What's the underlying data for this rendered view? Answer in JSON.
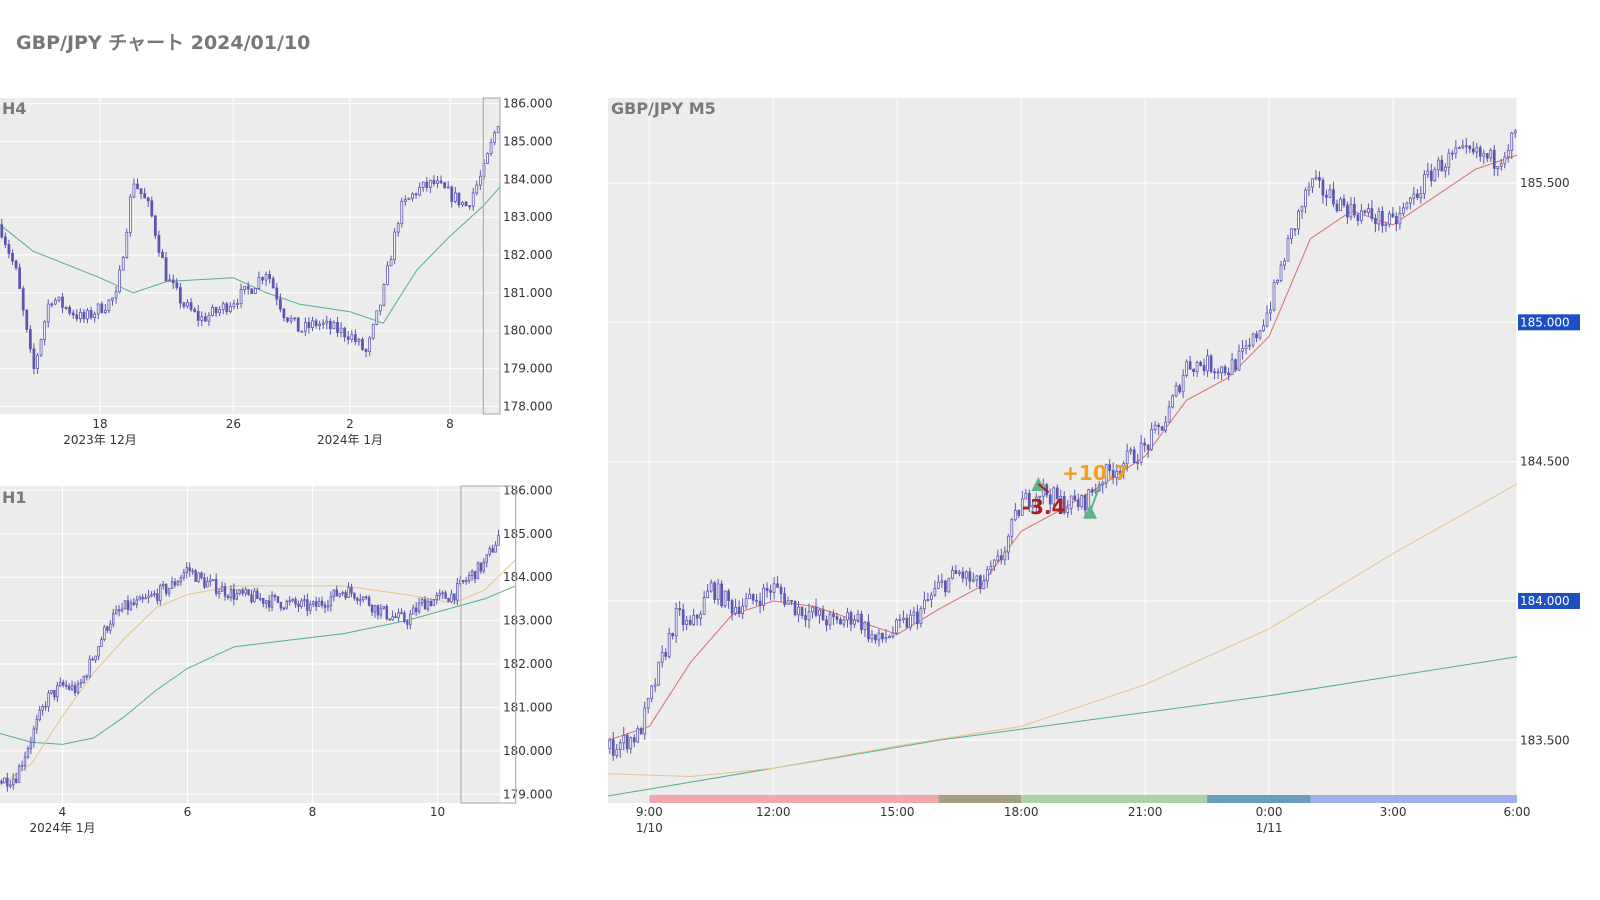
{
  "page": {
    "title": "GBP/JPY チャート 2024/01/10"
  },
  "colors": {
    "panel_bg": "#ececec",
    "grid": "#ffffff",
    "candle": "#5c56b0",
    "ma_short": "#e06a70",
    "ma_mid": "#e8c28a",
    "ma_long": "#55b08a",
    "axis_text": "#333333",
    "panel_title": "#7a7a7a",
    "price_badge_bg": "#1e4fc2",
    "price_badge_text": "#ffffff",
    "loss_annotation": "#a82020",
    "profit_annotation": "#f0a020",
    "entry_marker": "#5ab58a"
  },
  "chart_data": [
    {
      "name": "H4",
      "type": "candlestick",
      "title": "H4",
      "y_ticks": [
        "186.000",
        "185.000",
        "184.000",
        "183.000",
        "182.000",
        "181.000",
        "180.000",
        "179.000",
        "178.000"
      ],
      "y_tick_values": [
        186,
        185,
        184,
        183,
        182,
        181,
        180,
        179,
        178
      ],
      "ylim": [
        177.8,
        186.15
      ],
      "x_ticks": [
        "18",
        "26",
        "2",
        "8"
      ],
      "x_tick_dates": [
        "2023-12-18",
        "2023-12-26",
        "2024-01-02",
        "2024-01-08"
      ],
      "x_sublabels": [
        "2023年 12月",
        "2024年 1月"
      ],
      "xlim": [
        "2023-12-12",
        "2024-01-11"
      ],
      "highlight_range": [
        "2024-01-10",
        "2024-01-11"
      ],
      "price_path": [
        [
          "2023-12-12",
          182.8
        ],
        [
          "2023-12-13",
          181.5
        ],
        [
          "2023-12-14",
          178.9
        ],
        [
          "2023-12-15",
          180.9
        ],
        [
          "2023-12-16",
          180.6
        ],
        [
          "2023-12-17",
          180.3
        ],
        [
          "2023-12-18",
          180.6
        ],
        [
          "2023-12-19",
          180.9
        ],
        [
          "2023-12-20",
          184.0
        ],
        [
          "2023-12-21",
          183.2
        ],
        [
          "2023-12-22",
          181.4
        ],
        [
          "2023-12-23",
          180.7
        ],
        [
          "2023-12-24",
          180.3
        ],
        [
          "2023-12-25",
          180.5
        ],
        [
          "2023-12-26",
          180.8
        ],
        [
          "2023-12-27",
          181.1
        ],
        [
          "2023-12-28",
          181.6
        ],
        [
          "2023-12-29",
          180.5
        ],
        [
          "2023-12-30",
          180.0
        ],
        [
          "2023-12-31",
          180.2
        ],
        [
          "2024-01-02",
          179.9
        ],
        [
          "2024-01-03",
          179.4
        ],
        [
          "2024-01-04",
          181.0
        ],
        [
          "2024-01-05",
          183.2
        ],
        [
          "2024-01-06",
          183.7
        ],
        [
          "2024-01-07",
          183.9
        ],
        [
          "2024-01-08",
          183.6
        ],
        [
          "2024-01-09",
          183.3
        ],
        [
          "2024-01-10",
          184.2
        ],
        [
          "2024-01-11",
          185.7
        ]
      ],
      "ma_long": [
        [
          "2023-12-12",
          182.8
        ],
        [
          "2023-12-14",
          182.1
        ],
        [
          "2023-12-18",
          181.4
        ],
        [
          "2023-12-20",
          181.0
        ],
        [
          "2023-12-22",
          181.3
        ],
        [
          "2023-12-26",
          181.4
        ],
        [
          "2023-12-28",
          181.0
        ],
        [
          "2023-12-30",
          180.7
        ],
        [
          "2024-01-02",
          180.5
        ],
        [
          "2024-01-04",
          180.2
        ],
        [
          "2024-01-06",
          181.6
        ],
        [
          "2024-01-08",
          182.5
        ],
        [
          "2024-01-10",
          183.3
        ],
        [
          "2024-01-11",
          183.8
        ]
      ]
    },
    {
      "name": "H1",
      "type": "candlestick",
      "title": "H1",
      "y_ticks": [
        "186.000",
        "185.000",
        "184.000",
        "183.000",
        "182.000",
        "181.000",
        "180.000",
        "179.000"
      ],
      "y_tick_values": [
        186,
        185,
        184,
        183,
        182,
        181,
        180,
        179
      ],
      "ylim": [
        178.8,
        186.1
      ],
      "x_ticks": [
        "4",
        "6",
        "8",
        "10"
      ],
      "x_tick_dates": [
        "2024-01-04",
        "2024-01-06",
        "2024-01-08",
        "2024-01-10"
      ],
      "x_sublabels": [
        "2024年 1月"
      ],
      "xlim": [
        "2024-01-03",
        "2024-01-11"
      ],
      "highlight_range": [
        "2024-01-10T09:00",
        "2024-01-11T06:00"
      ],
      "price_path": [
        [
          "2024-01-03T00:00",
          179.3
        ],
        [
          "2024-01-03T06:00",
          179.4
        ],
        [
          "2024-01-03T12:00",
          180.3
        ],
        [
          "2024-01-03T18:00",
          181.2
        ],
        [
          "2024-01-04T00:00",
          181.5
        ],
        [
          "2024-01-04T06:00",
          181.4
        ],
        [
          "2024-01-04T12:00",
          182.2
        ],
        [
          "2024-01-04T18:00",
          183.0
        ],
        [
          "2024-01-05T00:00",
          183.3
        ],
        [
          "2024-01-05T06:00",
          183.4
        ],
        [
          "2024-01-05T12:00",
          183.6
        ],
        [
          "2024-01-05T18:00",
          183.8
        ],
        [
          "2024-01-06T00:00",
          184.2
        ],
        [
          "2024-01-06T06:00",
          183.9
        ],
        [
          "2024-01-06T18:00",
          183.6
        ],
        [
          "2024-01-08T00:00",
          183.3
        ],
        [
          "2024-01-08T06:00",
          183.5
        ],
        [
          "2024-01-08T12:00",
          183.7
        ],
        [
          "2024-01-08T18:00",
          183.6
        ],
        [
          "2024-01-09T00:00",
          183.3
        ],
        [
          "2024-01-09T06:00",
          183.1
        ],
        [
          "2024-01-09T12:00",
          183.0
        ],
        [
          "2024-01-09T18:00",
          183.4
        ],
        [
          "2024-01-10T00:00",
          183.5
        ],
        [
          "2024-01-10T06:00",
          183.6
        ],
        [
          "2024-01-10T12:00",
          184.0
        ],
        [
          "2024-01-10T18:00",
          184.3
        ],
        [
          "2024-01-11T00:00",
          185.0
        ],
        [
          "2024-01-11T06:00",
          185.6
        ]
      ],
      "ma_mid": [
        [
          "2024-01-03T00:00",
          179.2
        ],
        [
          "2024-01-03T12:00",
          179.7
        ],
        [
          "2024-01-04T00:00",
          180.8
        ],
        [
          "2024-01-04T12:00",
          181.8
        ],
        [
          "2024-01-05T00:00",
          182.6
        ],
        [
          "2024-01-05T12:00",
          183.3
        ],
        [
          "2024-01-06T00:00",
          183.6
        ],
        [
          "2024-01-06T18:00",
          183.8
        ],
        [
          "2024-01-08T12:00",
          183.8
        ],
        [
          "2024-01-09T12:00",
          183.6
        ],
        [
          "2024-01-10T06:00",
          183.4
        ],
        [
          "2024-01-10T18:00",
          183.7
        ],
        [
          "2024-01-11T06:00",
          184.4
        ]
      ],
      "ma_long": [
        [
          "2024-01-03T00:00",
          180.4
        ],
        [
          "2024-01-03T12:00",
          180.2
        ],
        [
          "2024-01-04T00:00",
          180.15
        ],
        [
          "2024-01-04T12:00",
          180.3
        ],
        [
          "2024-01-05T00:00",
          180.8
        ],
        [
          "2024-01-05T12:00",
          181.4
        ],
        [
          "2024-01-06T00:00",
          181.9
        ],
        [
          "2024-01-06T18:00",
          182.4
        ],
        [
          "2024-01-08T12:00",
          182.7
        ],
        [
          "2024-01-09T12:00",
          183.0
        ],
        [
          "2024-01-10T06:00",
          183.3
        ],
        [
          "2024-01-10T18:00",
          183.5
        ],
        [
          "2024-01-11T06:00",
          183.8
        ]
      ]
    },
    {
      "name": "M5",
      "type": "candlestick",
      "title": "GBP/JPY M5",
      "y_ticks": [
        "185.500",
        "185.000",
        "184.500",
        "184.000",
        "183.500"
      ],
      "y_tick_values": [
        185.5,
        185.0,
        184.5,
        184.0,
        183.5
      ],
      "ylim": [
        183.275,
        185.805
      ],
      "x_ticks": [
        "9:00",
        "12:00",
        "15:00",
        "18:00",
        "21:00",
        "0:00",
        "3:00",
        "6:00"
      ],
      "x_tick_times": [
        "2024-01-10T09:00",
        "2024-01-10T12:00",
        "2024-01-10T15:00",
        "2024-01-10T18:00",
        "2024-01-10T21:00",
        "2024-01-11T00:00",
        "2024-01-11T03:00",
        "2024-01-11T06:00"
      ],
      "x_sublabels": [
        {
          "text": "1/10",
          "at": "2024-01-10T09:00"
        },
        {
          "text": "1/11",
          "at": "2024-01-11T00:00"
        }
      ],
      "xlim": [
        "2024-01-10T08:00",
        "2024-01-11T06:00"
      ],
      "price_labels": [
        {
          "text": "185.000",
          "value": 185.0
        },
        {
          "text": "184.000",
          "value": 184.0
        }
      ],
      "price_path": [
        [
          "2024-01-10T08:00",
          183.47
        ],
        [
          "2024-01-10T08:45",
          183.52
        ],
        [
          "2024-01-10T09:20",
          183.8
        ],
        [
          "2024-01-10T09:40",
          183.95
        ],
        [
          "2024-01-10T10:00",
          183.9
        ],
        [
          "2024-01-10T10:30",
          184.05
        ],
        [
          "2024-01-10T11:00",
          183.98
        ],
        [
          "2024-01-10T11:30",
          184.0
        ],
        [
          "2024-01-10T12:00",
          184.05
        ],
        [
          "2024-01-10T12:30",
          183.98
        ],
        [
          "2024-01-10T13:00",
          183.95
        ],
        [
          "2024-01-10T13:30",
          183.92
        ],
        [
          "2024-01-10T14:00",
          183.95
        ],
        [
          "2024-01-10T14:30",
          183.85
        ],
        [
          "2024-01-10T15:00",
          183.9
        ],
        [
          "2024-01-10T15:30",
          183.95
        ],
        [
          "2024-01-10T16:00",
          184.05
        ],
        [
          "2024-01-10T16:30",
          184.1
        ],
        [
          "2024-01-10T17:00",
          184.05
        ],
        [
          "2024-01-10T17:30",
          184.15
        ],
        [
          "2024-01-10T18:00",
          184.35
        ],
        [
          "2024-01-10T18:30",
          184.4
        ],
        [
          "2024-01-10T19:00",
          184.35
        ],
        [
          "2024-01-10T19:30",
          184.35
        ],
        [
          "2024-01-10T20:00",
          184.45
        ],
        [
          "2024-01-10T20:30",
          184.5
        ],
        [
          "2024-01-10T21:00",
          184.55
        ],
        [
          "2024-01-10T21:30",
          184.65
        ],
        [
          "2024-01-10T22:00",
          184.85
        ],
        [
          "2024-01-10T22:30",
          184.85
        ],
        [
          "2024-01-10T23:00",
          184.83
        ],
        [
          "2024-01-10T23:30",
          184.9
        ],
        [
          "2024-01-11T00:00",
          185.05
        ],
        [
          "2024-01-11T00:30",
          185.3
        ],
        [
          "2024-01-11T01:00",
          185.5
        ],
        [
          "2024-01-11T01:30",
          185.45
        ],
        [
          "2024-01-11T02:00",
          185.4
        ],
        [
          "2024-01-11T02:30",
          185.38
        ],
        [
          "2024-01-11T03:00",
          185.35
        ],
        [
          "2024-01-11T03:30",
          185.45
        ],
        [
          "2024-01-11T04:00",
          185.55
        ],
        [
          "2024-01-11T04:30",
          185.6
        ],
        [
          "2024-01-11T05:00",
          185.6
        ],
        [
          "2024-01-11T05:30",
          185.58
        ],
        [
          "2024-01-11T06:00",
          185.68
        ]
      ],
      "ma_short": [
        [
          "2024-01-10T08:00",
          183.5
        ],
        [
          "2024-01-10T09:00",
          183.55
        ],
        [
          "2024-01-10T10:00",
          183.78
        ],
        [
          "2024-01-10T11:00",
          183.95
        ],
        [
          "2024-01-10T12:00",
          184.0
        ],
        [
          "2024-01-10T13:00",
          183.98
        ],
        [
          "2024-01-10T14:00",
          183.93
        ],
        [
          "2024-01-10T15:00",
          183.88
        ],
        [
          "2024-01-10T16:00",
          183.97
        ],
        [
          "2024-01-10T17:00",
          184.05
        ],
        [
          "2024-01-10T18:00",
          184.25
        ],
        [
          "2024-01-10T19:00",
          184.33
        ],
        [
          "2024-01-10T20:00",
          184.42
        ],
        [
          "2024-01-10T21:00",
          184.52
        ],
        [
          "2024-01-10T22:00",
          184.72
        ],
        [
          "2024-01-10T23:00",
          184.8
        ],
        [
          "2024-01-11T00:00",
          184.95
        ],
        [
          "2024-01-11T01:00",
          185.3
        ],
        [
          "2024-01-11T02:00",
          185.4
        ],
        [
          "2024-01-11T03:00",
          185.35
        ],
        [
          "2024-01-11T04:00",
          185.45
        ],
        [
          "2024-01-11T05:00",
          185.55
        ],
        [
          "2024-01-11T06:00",
          185.6
        ]
      ],
      "ma_mid": [
        [
          "2024-01-10T08:00",
          183.38
        ],
        [
          "2024-01-10T10:00",
          183.37
        ],
        [
          "2024-01-10T12:00",
          183.4
        ],
        [
          "2024-01-10T15:00",
          183.48
        ],
        [
          "2024-01-10T18:00",
          183.55
        ],
        [
          "2024-01-10T21:00",
          183.7
        ],
        [
          "2024-01-11T00:00",
          183.9
        ],
        [
          "2024-01-11T03:00",
          184.17
        ],
        [
          "2024-01-11T06:00",
          184.42
        ]
      ],
      "ma_long": [
        [
          "2024-01-10T08:00",
          183.3
        ],
        [
          "2024-01-10T12:00",
          183.4
        ],
        [
          "2024-01-10T16:00",
          183.5
        ],
        [
          "2024-01-10T20:00",
          183.58
        ],
        [
          "2024-01-11T00:00",
          183.66
        ],
        [
          "2024-01-11T03:00",
          183.73
        ],
        [
          "2024-01-11T06:00",
          183.8
        ]
      ],
      "session_bar": [
        {
          "from": "2024-01-10T09:00",
          "to": "2024-01-10T16:00",
          "color": "#f0a8ad"
        },
        {
          "from": "2024-01-10T16:00",
          "to": "2024-01-10T18:00",
          "color": "#a8a07c"
        },
        {
          "from": "2024-01-10T18:00",
          "to": "2024-01-10T22:30",
          "color": "#a7d4a0"
        },
        {
          "from": "2024-01-10T22:30",
          "to": "2024-01-11T01:00",
          "color": "#6a9cc0"
        },
        {
          "from": "2024-01-11T01:00",
          "to": "2024-01-11T06:00",
          "color": "#9fb0ec"
        }
      ],
      "trades": [
        {
          "entry_time": "2024-01-10T18:25",
          "entry_price": 184.42,
          "exit_time": "2024-01-10T18:40",
          "exit_price": 184.39,
          "result": "-3.4",
          "outcome": "loss"
        },
        {
          "entry_time": "2024-01-10T19:40",
          "entry_price": 184.32,
          "exit_time": "2024-01-10T19:55",
          "exit_price": 184.42,
          "result": "+10.7",
          "outcome": "profit"
        }
      ]
    }
  ]
}
